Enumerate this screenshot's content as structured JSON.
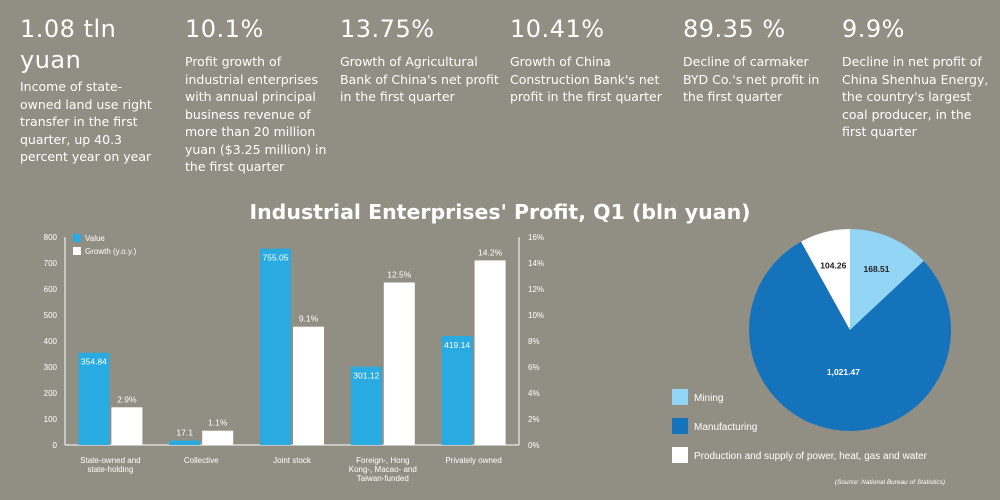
{
  "stats": [
    {
      "value": "1.08 tln yuan",
      "desc": "Income of state-owned land use right transfer in the first quarter, up 40.3 percent year on year"
    },
    {
      "value": "10.1%",
      "desc": "Profit growth of industrial enterprises with annual principal business revenue of more than 20 million yuan ($3.25 million) in the first quarter"
    },
    {
      "value": "13.75%",
      "desc": "Growth of Agricultural Bank of China's net profit in the first quarter"
    },
    {
      "value": "10.41%",
      "desc": "Growth of China Construction Bank's net profit in the first quarter"
    },
    {
      "value": "89.35 %",
      "desc": "Decline of carmaker BYD Co.'s net profit in the first quarter"
    },
    {
      "value": "9.9%",
      "desc": "Decline in net profit of China Shenhua Energy, the country's largest coal producer, in the first quarter"
    }
  ],
  "chart_title": "Industrial Enterprises' Profit, Q1 (bln yuan)",
  "colors": {
    "background": "#918f84",
    "value": "#29abe2",
    "growth": "#ffffff",
    "mining": "#92d5f5",
    "manufacturing": "#1473bb",
    "power": "#ffffff"
  },
  "chart_data": [
    {
      "type": "bar",
      "categories": [
        "State-owned and state-holding",
        "Collective",
        "Joint stock",
        "Foreign-, Hong Kong-, Macao- and Taiwan-funded",
        "Privately owned"
      ],
      "series": [
        {
          "name": "Value",
          "axis": "left",
          "values": [
            354.84,
            17.1,
            755.05,
            301.12,
            419.14
          ],
          "labels": [
            "354.84",
            "17.1",
            "755.05",
            "301.12",
            "419.14"
          ]
        },
        {
          "name": "Growth (y.o.y.)",
          "axis": "right",
          "values": [
            2.9,
            1.1,
            9.1,
            12.5,
            14.2
          ],
          "labels": [
            "2.9%",
            "1.1%",
            "9.1%",
            "12.5%",
            "14.2%"
          ]
        }
      ],
      "ylim_left": [
        0,
        800
      ],
      "yticks_left": [
        "0",
        "100",
        "200",
        "300",
        "400",
        "500",
        "600",
        "700",
        "800"
      ],
      "ylim_right": [
        0,
        16
      ],
      "yticks_right": [
        "0%",
        "2%",
        "4%",
        "6%",
        "8%",
        "10%",
        "12%",
        "14%",
        "16%"
      ],
      "legend": "top-left"
    },
    {
      "type": "pie",
      "slices": [
        {
          "name": "Mining",
          "value": 168.51,
          "label": "168.51"
        },
        {
          "name": "Manufacturing",
          "value": 1021.47,
          "label": "1,021.47"
        },
        {
          "name": "Production and supply of power, heat, gas and water",
          "value": 104.26,
          "label": "104.26"
        }
      ],
      "legend": "left"
    }
  ],
  "source": "(Source: National Bureau of Statistics)"
}
